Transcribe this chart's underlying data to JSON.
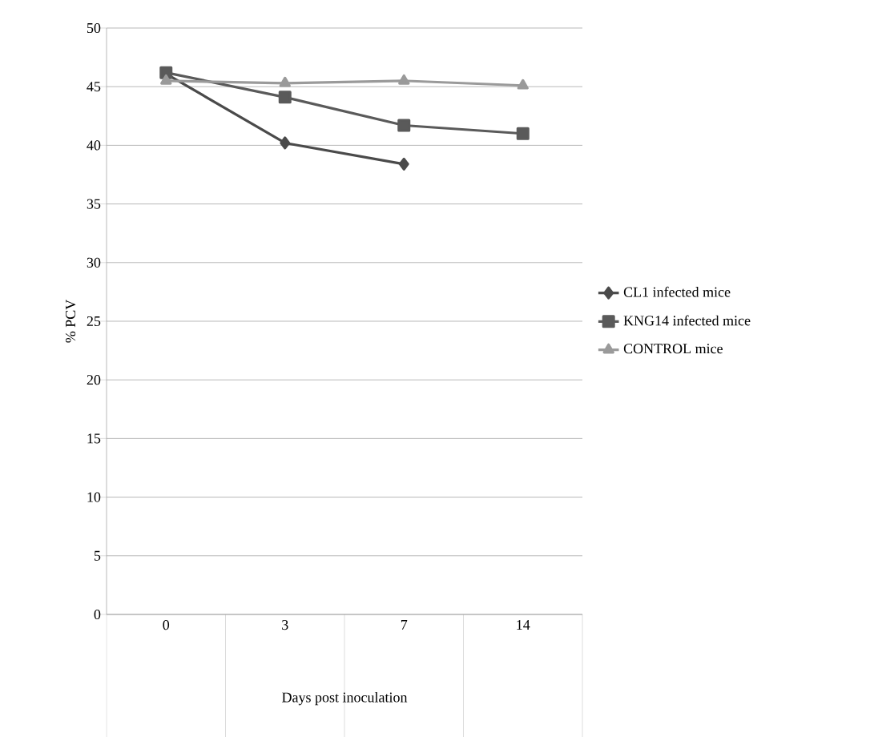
{
  "chart_data": {
    "type": "line",
    "xlabel": "Days post inoculation",
    "ylabel": "% PCV",
    "categories": [
      "0",
      "3",
      "7",
      "14"
    ],
    "series": [
      {
        "name": "CL1 infected mice",
        "color": "#4a4a4a",
        "marker": "diamond",
        "values": [
          46.1,
          40.2,
          38.4,
          null
        ]
      },
      {
        "name": "KNG14 infected mice",
        "color": "#5a5a5a",
        "marker": "square",
        "values": [
          46.2,
          44.1,
          41.7,
          41.0
        ]
      },
      {
        "name": "CONTROL mice",
        "color": "#9a9a9a",
        "marker": "triangle",
        "values": [
          45.5,
          45.3,
          45.5,
          45.1
        ]
      }
    ],
    "ylim": [
      0,
      50
    ],
    "yticks": [
      0,
      5,
      10,
      15,
      20,
      25,
      30,
      35,
      40,
      45,
      50
    ],
    "grid": "y",
    "legend": "right",
    "line_style": "solid"
  }
}
